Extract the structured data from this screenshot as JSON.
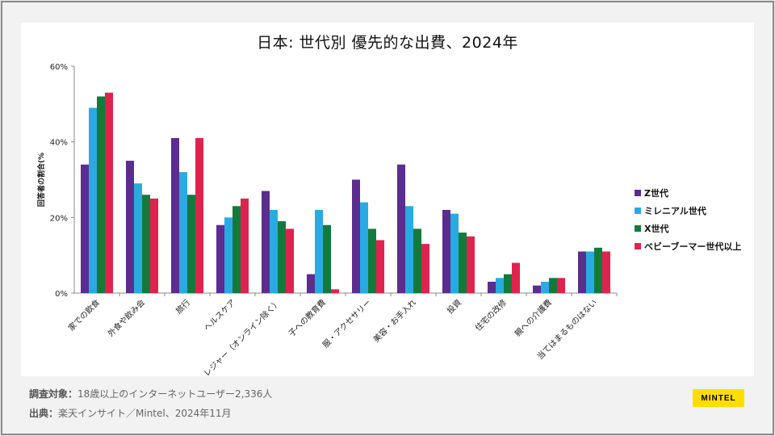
{
  "chart_data": {
    "type": "bar",
    "title": "日本: 世代別 優先的な出費、2024年",
    "ylabel": "回答者の割合(%",
    "ylim": [
      0,
      60
    ],
    "yticks": [
      "0%",
      "20%",
      "40%",
      "60%"
    ],
    "categories": [
      "家での飲食",
      "外食や飲み会",
      "旅行",
      "ヘルスケア",
      "レジャー（オンライン除く）",
      "子への教育費",
      "服・アクセサリー",
      "美容・お手入れ",
      "投資",
      "住宅の改修",
      "親への介護費",
      "当てはまるものはない"
    ],
    "series": [
      {
        "name": "Z世代",
        "color": "#5b2d8e",
        "values": [
          34,
          35,
          41,
          18,
          27,
          5,
          30,
          34,
          22,
          3,
          2,
          11
        ]
      },
      {
        "name": "ミレニアル世代",
        "color": "#29abe2",
        "values": [
          49,
          29,
          32,
          20,
          22,
          22,
          24,
          23,
          21,
          4,
          3,
          11
        ]
      },
      {
        "name": "X世代",
        "color": "#137a3c",
        "values": [
          52,
          26,
          26,
          23,
          19,
          18,
          17,
          17,
          16,
          5,
          4,
          12
        ]
      },
      {
        "name": "ベビーブーマー世代以上",
        "color": "#e0234e",
        "values": [
          53,
          25,
          41,
          25,
          17,
          1,
          14,
          13,
          15,
          8,
          4,
          11
        ]
      }
    ],
    "legend": "right"
  },
  "footer": {
    "target_label": "調査対象：",
    "target_value": "18歳以上のインターネットユーザー2,336人",
    "source_label": "出典：",
    "source_value": "楽天インサイト／Mintel、2024年11月"
  },
  "logo": "MINTEL"
}
